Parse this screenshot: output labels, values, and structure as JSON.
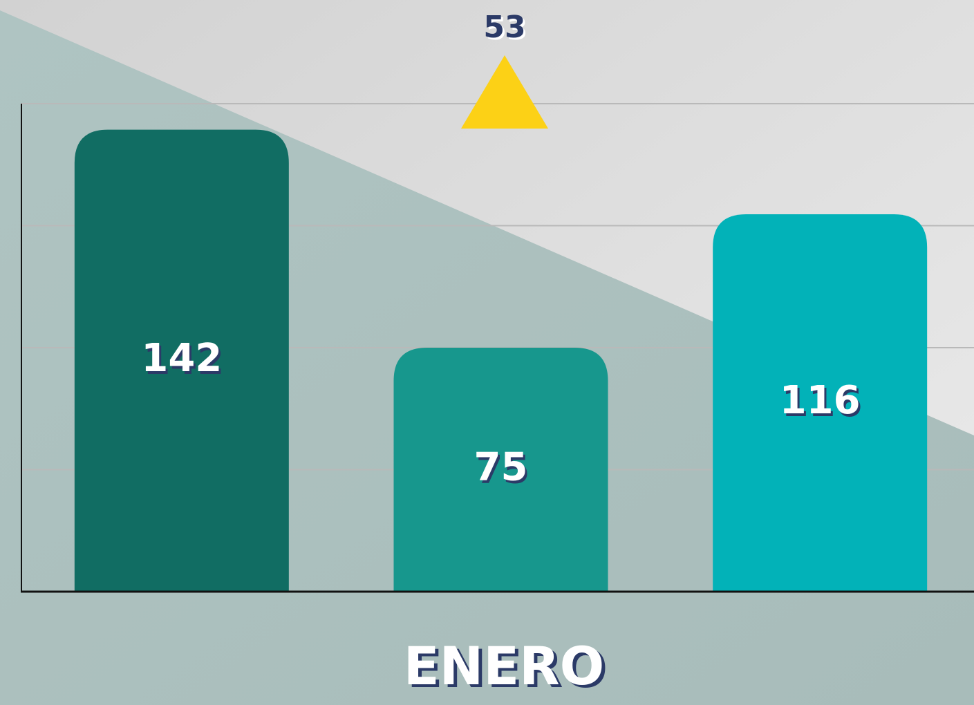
{
  "chart_data": {
    "type": "bar",
    "x_label": "ENERO",
    "annotation": "53",
    "values": [
      142,
      75,
      116
    ],
    "colors": [
      "#116d63",
      "#17978d",
      "#02b2b8"
    ],
    "ylim": [
      0,
      150
    ],
    "yticks": [
      0,
      37.5,
      75,
      112.5,
      150
    ],
    "grid": true
  }
}
